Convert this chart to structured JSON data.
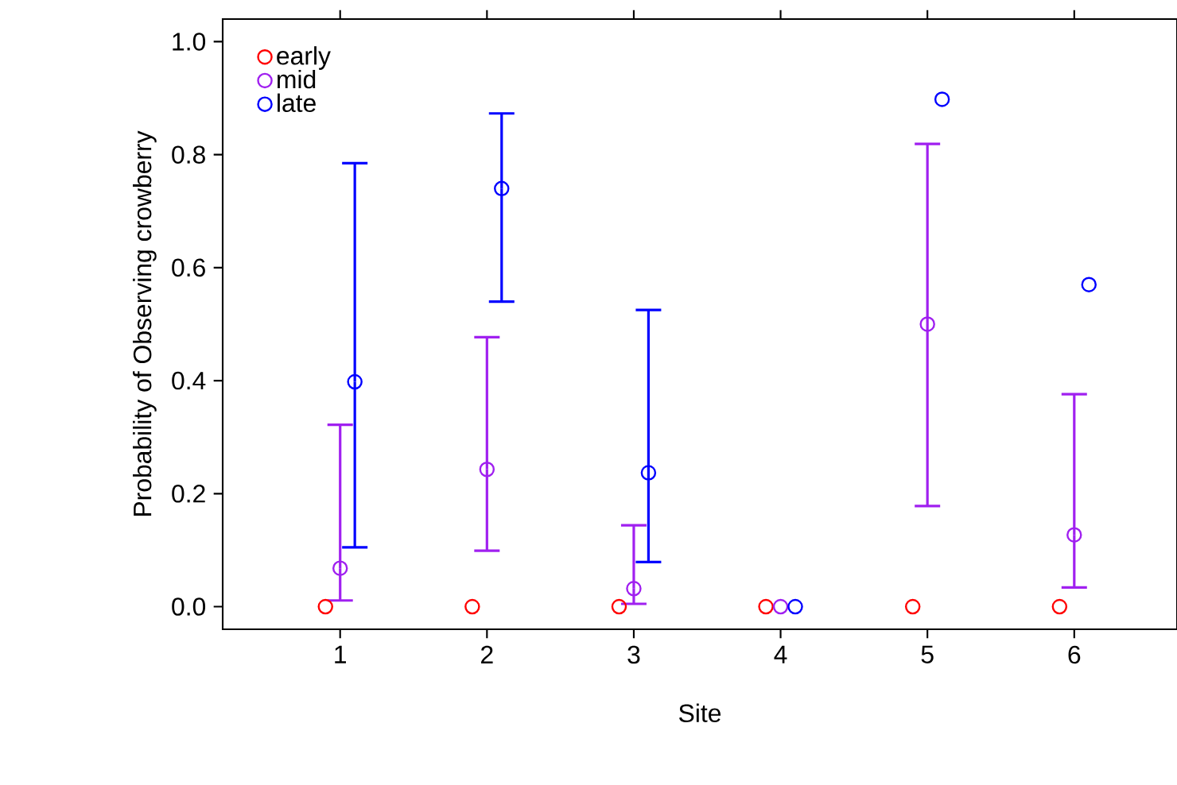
{
  "chart_data": {
    "type": "scatter",
    "xlabel": "Site",
    "ylabel": "Probability of Observing crowberry",
    "xlim": [
      0.2,
      6.7
    ],
    "xticks": [
      1,
      2,
      3,
      4,
      5,
      6
    ],
    "ylim": [
      -0.04,
      1.04
    ],
    "yticks": [
      {
        "value": 0,
        "label": "0.0"
      },
      {
        "value": 0.2,
        "label": "0.2"
      },
      {
        "value": 0.4,
        "label": "0.4"
      },
      {
        "value": 0.6,
        "label": "0.6"
      },
      {
        "value": 0.8,
        "label": "0.8"
      },
      {
        "value": 1,
        "label": "1.0"
      }
    ],
    "legend": "top left",
    "marker": "circle",
    "grid": false,
    "series": [
      {
        "name": "early",
        "color": "#ff0000",
        "x": [
          0.9,
          1.9,
          2.9,
          3.9,
          4.9,
          5.9
        ],
        "values": [
          0,
          0,
          0,
          0,
          0,
          0
        ]
      },
      {
        "name": "mid",
        "color": "#a020f0",
        "x": [
          1,
          2,
          3,
          4,
          5,
          6
        ],
        "values": [
          0.068,
          0.243,
          0.032,
          0,
          0.5,
          0.127
        ],
        "errors": [
          [
            0.011,
            0.322
          ],
          [
            0.099,
            0.477
          ],
          [
            0.005,
            0.144
          ],
          null,
          [
            0.178,
            0.819
          ],
          [
            0.034,
            0.376
          ]
        ]
      },
      {
        "name": "late",
        "color": "#0000ff",
        "x": [
          1.1,
          2.1,
          3.1,
          4.1,
          5.1,
          6.1
        ],
        "values": [
          0.398,
          0.74,
          0.237,
          0,
          0.898,
          0.57
        ],
        "errors": [
          [
            0.105,
            0.785
          ],
          [
            0.54,
            0.873
          ],
          [
            0.079,
            0.525
          ],
          null,
          null,
          null
        ]
      }
    ]
  }
}
